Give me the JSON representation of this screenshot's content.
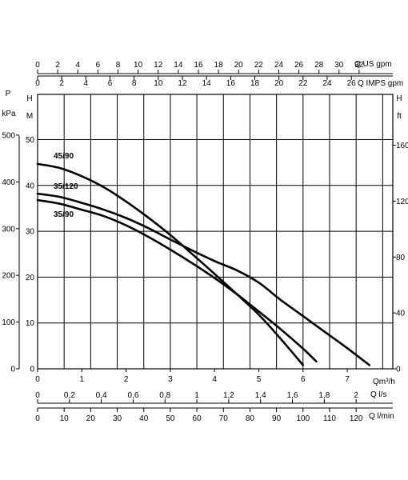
{
  "chart_data": {
    "type": "line",
    "x_unit_main": "Qm³/h",
    "xlim": [
      0,
      7.5
    ],
    "ylim_m": [
      0,
      50
    ],
    "left_axis_label_top": "P",
    "left_axis_label_kpa": "kPa",
    "left_axis_label_h": "H",
    "left_axis_label_m": "M",
    "right_axis_label_h": "H",
    "right_axis_label_ft": "ft",
    "kpa_ticks": [
      "0",
      "100",
      "200",
      "300",
      "400",
      "500"
    ],
    "m_ticks": [
      "0",
      "10",
      "20",
      "30",
      "40",
      "50"
    ],
    "ft_ticks": [
      "0",
      "40",
      "80",
      "120",
      "160"
    ],
    "qm3h_ticks": [
      "0",
      "1",
      "2",
      "3",
      "4",
      "5",
      "6",
      "7"
    ],
    "us_gpm": {
      "label": "Q US gpm",
      "ticks": [
        "0",
        "2",
        "4",
        "6",
        "8",
        "10",
        "12",
        "14",
        "16",
        "18",
        "20",
        "22",
        "24",
        "26",
        "28",
        "30",
        "32"
      ]
    },
    "imps_gpm": {
      "label": "Q IMPS gpm",
      "ticks": [
        "0",
        "2",
        "4",
        "6",
        "8",
        "10",
        "12",
        "14",
        "16",
        "18",
        "20",
        "22",
        "24",
        "26"
      ]
    },
    "ls": {
      "label": "Q l/s",
      "ticks": [
        "0",
        "0,2",
        "0,4",
        "0,6",
        "0,8",
        "1",
        "1,2",
        "1,4",
        "1,6",
        "1,8",
        "2"
      ]
    },
    "lmin": {
      "label": "Q l/min",
      "ticks": [
        "0",
        "10",
        "20",
        "30",
        "40",
        "50",
        "60",
        "70",
        "80",
        "90",
        "100",
        "110",
        "120"
      ]
    },
    "series": [
      {
        "name": "45/90",
        "x": [
          0,
          0.5,
          1,
          1.5,
          2,
          2.5,
          3,
          3.5,
          4,
          4.5,
          5,
          5.5,
          6
        ],
        "y": [
          44.7,
          43.8,
          42,
          39.6,
          36.5,
          33,
          29.2,
          25,
          20.7,
          16.3,
          11.8,
          6.5,
          0.8
        ]
      },
      {
        "name": "35/120",
        "x": [
          0,
          0.5,
          1,
          1.5,
          2,
          2.5,
          3,
          3.5,
          4,
          4.5,
          5,
          5.5,
          6,
          6.5,
          7,
          7.5
        ],
        "y": [
          38.2,
          37.5,
          36.2,
          34.7,
          32.9,
          30.7,
          28.2,
          25.8,
          23.5,
          21.5,
          18.8,
          15,
          11.5,
          8,
          4.5,
          0.8
        ]
      },
      {
        "name": "35/90",
        "x": [
          0,
          0.5,
          1,
          1.5,
          2,
          2.5,
          3,
          3.5,
          4,
          4.5,
          5,
          5.5,
          6,
          6.3
        ],
        "y": [
          36.8,
          36,
          34.7,
          33.3,
          31.3,
          28.8,
          26,
          23,
          19.8,
          16.3,
          12.5,
          8.6,
          4.4,
          1.6
        ]
      }
    ]
  }
}
